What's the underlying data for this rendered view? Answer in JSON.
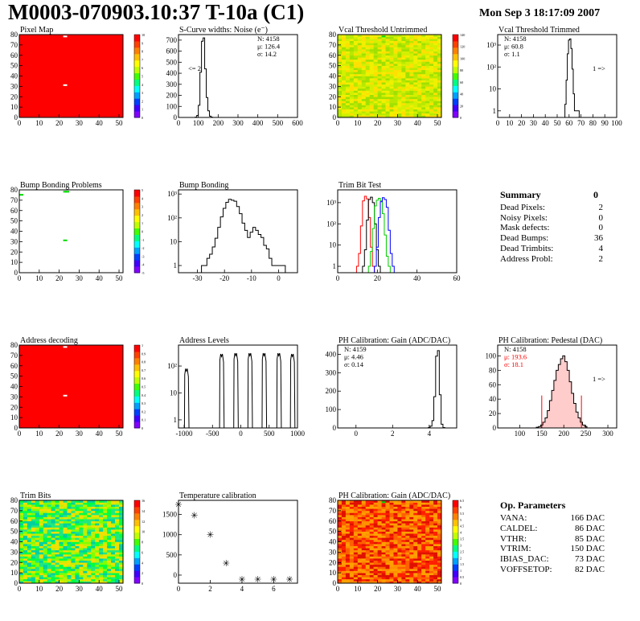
{
  "header": {
    "title": "M0003-070903.10:37 T-10a (C1)",
    "datetime": "Mon Sep  3 18:17:09 2007"
  },
  "colors": {
    "frame": "#000000",
    "heat_red": "#ff0000",
    "blue_curve": "#0000ff",
    "green_curve": "#00cc00",
    "red_curve": "#ff0000"
  },
  "chart_data": [
    {
      "id": "pixel_map",
      "type": "heatmap",
      "title": "Pixel Map",
      "xlim": [
        0,
        52
      ],
      "ylim": [
        0,
        80
      ],
      "xticks": [
        "0",
        "10",
        "20",
        "30",
        "40",
        "50"
      ],
      "yticks": [
        "0",
        "10",
        "20",
        "30",
        "40",
        "50",
        "60",
        "70",
        "80"
      ],
      "fill_color": "#ff0000",
      "colorbar": {
        "min": 0,
        "max": 10,
        "labels": [
          "0",
          "1",
          "2",
          "3",
          "4",
          "5",
          "6",
          "7",
          "8",
          "9",
          "10"
        ]
      },
      "special_pixels": [
        [
          22,
          78
        ],
        [
          22,
          31
        ]
      ]
    },
    {
      "id": "scurve_noise",
      "type": "line",
      "title": "S-Curve widths: Noise (e⁻)",
      "xlim": [
        0,
        600
      ],
      "ylim": [
        0,
        750
      ],
      "xticks": [
        "0",
        "100",
        "200",
        "300",
        "400",
        "500",
        "600"
      ],
      "yticks": [
        "0",
        "100",
        "200",
        "300",
        "400",
        "500",
        "600",
        "700"
      ],
      "stats": [
        "N: 4158",
        "μ: 126.4",
        "σ: 14.2"
      ],
      "annotation": "<= 2",
      "x": [
        88,
        96,
        104,
        112,
        120,
        128,
        136,
        144,
        152,
        160,
        168,
        176
      ],
      "y": [
        3,
        18,
        110,
        410,
        690,
        720,
        440,
        180,
        60,
        12,
        3,
        0
      ]
    },
    {
      "id": "vcal_untrimmed",
      "type": "heatmap",
      "title": "Vcal Threshold Untrimmed",
      "xlim": [
        0,
        52
      ],
      "ylim": [
        0,
        80
      ],
      "xticks": [
        "0",
        "10",
        "20",
        "30",
        "40",
        "50"
      ],
      "yticks": [
        "0",
        "10",
        "20",
        "30",
        "40",
        "50",
        "60",
        "70",
        "80"
      ],
      "palette": [
        "#d4f000",
        "#f0f000",
        "#b8e800",
        "#ffe000",
        "#a0e000"
      ],
      "colorbar": {
        "min": 0,
        "max": 140,
        "labels": [
          "0",
          "20",
          "40",
          "60",
          "80",
          "100",
          "120",
          "140"
        ]
      },
      "special_pixels": [
        [
          22,
          78
        ]
      ]
    },
    {
      "id": "vcal_trimmed",
      "type": "line",
      "title": "Vcal Threshold Trimmed",
      "xlim": [
        0,
        100
      ],
      "log_y": true,
      "ylim": [
        0.5,
        3000
      ],
      "xticks": [
        "0",
        "10",
        "20",
        "30",
        "40",
        "50",
        "60",
        "70",
        "80",
        "90",
        "100"
      ],
      "yticks": [
        "1",
        "10",
        "10²",
        "10³"
      ],
      "stats": [
        "N: 4158",
        "μ: 60.8",
        "σ:  1.1"
      ],
      "annotation": "1 =>",
      "x": [
        57,
        58,
        59,
        60,
        61,
        62,
        63,
        64,
        65,
        68
      ],
      "y": [
        2,
        25,
        400,
        1700,
        1900,
        700,
        80,
        6,
        1,
        1
      ]
    },
    {
      "id": "bump_problems",
      "type": "heatmap",
      "title": "Bump Bonding Problems",
      "xlim": [
        0,
        52
      ],
      "ylim": [
        0,
        80
      ],
      "xticks": [
        "0",
        "10",
        "20",
        "30",
        "40",
        "50"
      ],
      "yticks": [
        "0",
        "10",
        "20",
        "30",
        "40",
        "50",
        "60",
        "70",
        "80"
      ],
      "colorbar": {
        "min": -5,
        "max": 5,
        "labels": [
          "-5",
          "-4",
          "-3",
          "-2",
          "-1",
          "0",
          "1",
          "2",
          "3",
          "4",
          "5"
        ]
      },
      "special_pixels": [
        [
          22,
          78
        ],
        [
          23,
          78
        ],
        [
          22,
          31
        ],
        [
          0,
          75
        ]
      ]
    },
    {
      "id": "bump_bonding",
      "type": "line",
      "title": "Bump Bonding",
      "xlim": [
        -37,
        7
      ],
      "log_y": true,
      "ylim": [
        0.5,
        1500
      ],
      "xticks": [
        "-30",
        "-20",
        "-10",
        "0"
      ],
      "yticks": [
        "1",
        "10",
        "10²",
        "10³"
      ],
      "x": [
        -28,
        -27,
        -26,
        -25,
        -24,
        -23,
        -22,
        -21,
        -20,
        -19,
        -18,
        -17,
        -16,
        -15,
        -14,
        -13,
        -12,
        -11,
        -10,
        -9,
        -8,
        -7,
        -6,
        -5,
        -4,
        -3,
        -2,
        -1,
        0,
        1,
        2
      ],
      "y": [
        1,
        1,
        2,
        3,
        6,
        14,
        40,
        110,
        250,
        450,
        600,
        550,
        500,
        300,
        150,
        60,
        30,
        15,
        25,
        40,
        30,
        20,
        15,
        7,
        5,
        2,
        1,
        1,
        1,
        1,
        1
      ]
    },
    {
      "id": "trim_bit_test",
      "type": "line",
      "title": "Trim Bit Test",
      "xlim": [
        0,
        60
      ],
      "log_y": true,
      "ylim": [
        0.5,
        4000
      ],
      "xticks": [
        "0",
        "20",
        "40",
        "60"
      ],
      "yticks": [
        "1",
        "10",
        "10²",
        "10³"
      ],
      "series": [
        {
          "color": "#ff0000",
          "x": [
            10,
            11,
            12,
            13,
            14,
            15,
            16,
            17,
            18
          ],
          "y": [
            1,
            4,
            80,
            1200,
            2000,
            1500,
            200,
            8,
            1
          ]
        },
        {
          "color": "#000000",
          "x": [
            13,
            14,
            15,
            16,
            17,
            18,
            19,
            20,
            21
          ],
          "y": [
            1,
            6,
            150,
            1400,
            1800,
            1000,
            100,
            6,
            1
          ]
        },
        {
          "color": "#00cc00",
          "x": [
            16,
            17,
            18,
            19,
            20,
            21,
            22,
            23,
            24,
            25,
            26
          ],
          "y": [
            1,
            5,
            60,
            700,
            1300,
            1600,
            1200,
            300,
            30,
            3,
            1
          ]
        },
        {
          "color": "#0000ff",
          "x": [
            19,
            20,
            21,
            22,
            23,
            24,
            25,
            26,
            27,
            28
          ],
          "y": [
            1,
            8,
            200,
            1100,
            1700,
            1400,
            600,
            50,
            4,
            1
          ]
        }
      ]
    },
    {
      "id": "address_decoding",
      "type": "heatmap",
      "title": "Address decoding",
      "xlim": [
        0,
        52
      ],
      "ylim": [
        0,
        80
      ],
      "xticks": [
        "0",
        "10",
        "20",
        "30",
        "40",
        "50"
      ],
      "yticks": [
        "0",
        "10",
        "20",
        "30",
        "40",
        "50",
        "60",
        "70",
        "80"
      ],
      "fill_color": "#ff0000",
      "colorbar": {
        "min": 0,
        "max": 1,
        "labels": [
          "0",
          "0.1",
          "0.2",
          "0.3",
          "0.4",
          "0.5",
          "0.6",
          "0.7",
          "0.8",
          "0.9",
          "1"
        ]
      },
      "special_pixels": [
        [
          22,
          78
        ],
        [
          22,
          31
        ]
      ]
    },
    {
      "id": "address_levels",
      "type": "line",
      "title": "Address Levels",
      "xlim": [
        -1100,
        1000
      ],
      "log_y": true,
      "ylim": [
        0.5,
        600
      ],
      "xticks": [
        "-1000",
        "-500",
        "0",
        "500",
        "1000"
      ],
      "yticks": [
        "1",
        "10",
        "10²"
      ],
      "peaks": [
        -950,
        -330,
        -80,
        170,
        420,
        680,
        920
      ],
      "peak_heights": [
        80,
        280,
        300,
        300,
        300,
        300,
        280
      ]
    },
    {
      "id": "ph_gain_hist",
      "type": "line",
      "title": "PH Calibration: Gain (ADC/DAC)",
      "xlim": [
        -1,
        5.5
      ],
      "ylim": [
        0,
        450
      ],
      "xticks": [
        "0",
        "2",
        "4"
      ],
      "yticks": [
        "0",
        "100",
        "200",
        "300",
        "400"
      ],
      "stats": [
        "N: 4159",
        "μ: 4.46",
        "σ: 0.14"
      ],
      "x": [
        4.0,
        4.1,
        4.2,
        4.3,
        4.4,
        4.5,
        4.6,
        4.7,
        4.8
      ],
      "y": [
        2,
        10,
        40,
        170,
        390,
        420,
        180,
        20,
        2
      ]
    },
    {
      "id": "ph_pedestal",
      "type": "line",
      "title": "PH Calibration: Pedestal (DAC)",
      "xlim": [
        50,
        320
      ],
      "ylim": [
        0,
        115
      ],
      "xticks": [
        "100",
        "150",
        "200",
        "250",
        "300"
      ],
      "yticks": [
        "0",
        "20",
        "40",
        "60",
        "80",
        "100"
      ],
      "stats": [
        "N: 4158",
        "μ: 193.6",
        "σ: 18.1"
      ],
      "stats_colors": [
        "#000000",
        "#ff0000",
        "#ff0000"
      ],
      "annotation": "1 =>",
      "cut_lines": [
        150,
        240
      ],
      "x": [
        140,
        145,
        150,
        155,
        160,
        165,
        170,
        175,
        180,
        185,
        190,
        195,
        200,
        205,
        210,
        215,
        220,
        225,
        230,
        235,
        240,
        245,
        250
      ],
      "y": [
        1,
        2,
        4,
        8,
        14,
        24,
        38,
        52,
        66,
        80,
        88,
        96,
        100,
        92,
        80,
        64,
        48,
        34,
        22,
        14,
        8,
        4,
        2
      ]
    },
    {
      "id": "trim_bits",
      "type": "heatmap",
      "title": "Trim Bits",
      "xlim": [
        0,
        52
      ],
      "ylim": [
        0,
        80
      ],
      "xticks": [
        "0",
        "10",
        "20",
        "30",
        "40",
        "50"
      ],
      "yticks": [
        "0",
        "10",
        "20",
        "30",
        "40",
        "50",
        "60",
        "70",
        "80"
      ],
      "palette": [
        "#80ff00",
        "#00ff40",
        "#c0f000",
        "#20e880",
        "#f0e000",
        "#00d0a0"
      ],
      "colorbar": {
        "min": 0,
        "max": 16,
        "labels": [
          "0",
          "2",
          "4",
          "6",
          "8",
          "10",
          "12",
          "14",
          "16"
        ]
      }
    },
    {
      "id": "temperature",
      "type": "scatter",
      "title": "Temperature calibration",
      "xlim": [
        0,
        7.5
      ],
      "ylim": [
        -200,
        1850
      ],
      "xticks": [
        "0",
        "2",
        "4",
        "6"
      ],
      "yticks": [
        "0",
        "500",
        "1000",
        "1500"
      ],
      "x": [
        0,
        1,
        2,
        3,
        4,
        5,
        6,
        7
      ],
      "y": [
        1750,
        1480,
        1000,
        300,
        -100,
        -100,
        -100,
        -100
      ]
    },
    {
      "id": "ph_gain_map",
      "type": "heatmap",
      "title": "PH Calibration: Gain (ADC/DAC)",
      "xlim": [
        0,
        52
      ],
      "ylim": [
        0,
        80
      ],
      "xticks": [
        "0",
        "10",
        "20",
        "30",
        "40",
        "50"
      ],
      "yticks": [
        "0",
        "10",
        "20",
        "30",
        "40",
        "50",
        "60",
        "70",
        "80"
      ],
      "palette": [
        "#ff2000",
        "#ff6000",
        "#ff9000",
        "#e01000",
        "#ffa000"
      ],
      "colorbar": {
        "min": 0,
        "max": 6.5,
        "labels": [
          "0",
          "0.5",
          "1",
          "1.5",
          "2",
          "2.5",
          "3",
          "3.5",
          "4",
          "4.5",
          "5",
          "5.5",
          "6",
          "6.5"
        ]
      },
      "special_pixels": [
        [
          22,
          78
        ]
      ]
    }
  ],
  "summary": {
    "title": "Summary",
    "value": "0",
    "rows": [
      {
        "label": "Dead Pixels:",
        "value": "2"
      },
      {
        "label": "Noisy Pixels:",
        "value": "0"
      },
      {
        "label": "Mask defects:",
        "value": "0"
      },
      {
        "label": "Dead Bumps:",
        "value": "36"
      },
      {
        "label": "Dead Trimbits:",
        "value": "4"
      },
      {
        "label": "Address Probl:",
        "value": "2"
      }
    ]
  },
  "op_params": {
    "title": "Op. Parameters",
    "rows": [
      {
        "label": "VANA:",
        "value": "166 DAC"
      },
      {
        "label": "CALDEL:",
        "value": "86 DAC"
      },
      {
        "label": "VTHR:",
        "value": "85 DAC"
      },
      {
        "label": "VTRIM:",
        "value": "150 DAC"
      },
      {
        "label": "IBIAS_DAC:",
        "value": "73 DAC"
      },
      {
        "label": "VOFFSETOP:",
        "value": "82 DAC"
      }
    ]
  }
}
